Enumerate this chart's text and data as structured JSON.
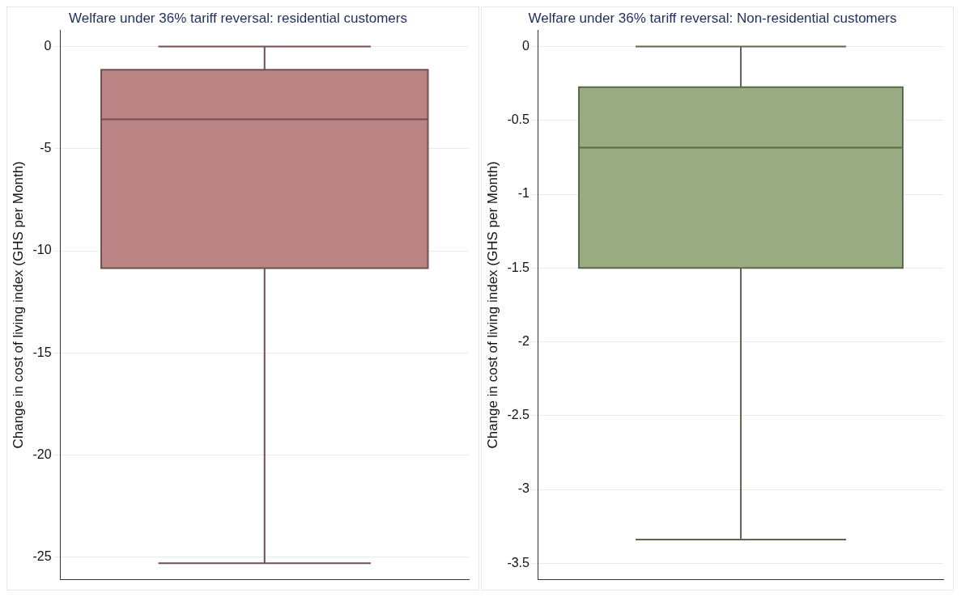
{
  "chart_data": [
    {
      "type": "box",
      "title": "Welfare under 36% tariff reversal: residential customers",
      "ylabel": "Change in cost of living index (GHS per Month)",
      "categories": [
        null
      ],
      "ylim": [
        -26.1,
        0.8
      ],
      "yticks": [
        0,
        -5,
        -10,
        -15,
        -20,
        -25
      ],
      "grid": "y",
      "series": [
        {
          "color": "#bc8585",
          "boxes": [
            {
              "low": -25.3,
              "q1": -10.85,
              "median": -3.56,
              "q3": -1.14,
              "high": 0
            }
          ]
        }
      ]
    },
    {
      "type": "box",
      "title": "Welfare under 36% tariff reversal: Non-residential customers",
      "ylabel": "Change in cost of living index (GHS per Month)",
      "categories": [
        null
      ],
      "ylim": [
        -3.61,
        0.11
      ],
      "yticks": [
        0,
        -0.5,
        -1,
        -1.5,
        -2,
        -2.5,
        -3,
        -3.5
      ],
      "grid": "y",
      "series": [
        {
          "color": "#9aad82",
          "boxes": [
            {
              "low": -3.34,
              "q1": -1.5,
              "median": -0.685,
              "q3": -0.275,
              "high": 0
            }
          ]
        }
      ]
    }
  ]
}
